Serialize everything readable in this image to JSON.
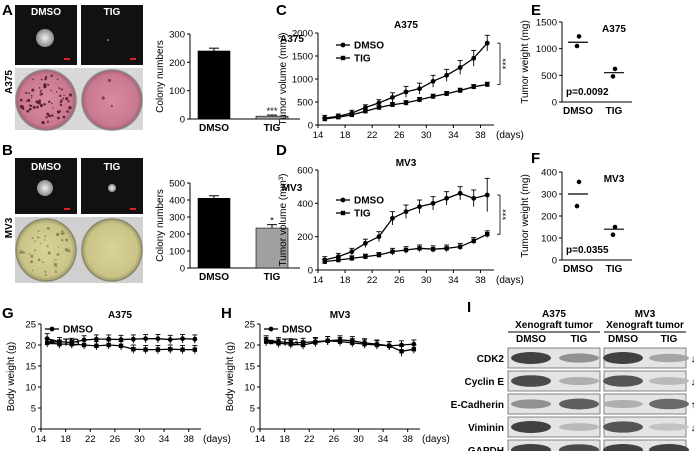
{
  "figure": {
    "A": {
      "letter": "A",
      "row_label": "A375",
      "img_labels": [
        "DMSO",
        "TIG"
      ],
      "chart_data": {
        "type": "bar",
        "title": "A375",
        "ylabel": "Colony numbers",
        "categories": [
          "DMSO",
          "TIG"
        ],
        "values": [
          240,
          10
        ],
        "errors": [
          10,
          4
        ],
        "ylim": [
          0,
          300
        ],
        "yticks": [
          "0",
          "100",
          "200",
          "300"
        ],
        "colors": [
          "#000000",
          "#a0a0a0"
        ],
        "significance": [
          "",
          "***"
        ]
      }
    },
    "B": {
      "letter": "B",
      "row_label": "MV3",
      "img_labels": [
        "DMSO",
        "TIG"
      ],
      "chart_data": {
        "type": "bar",
        "title": "MV3",
        "ylabel": "Colony numbers",
        "categories": [
          "DMSO",
          "TIG"
        ],
        "values": [
          410,
          235
        ],
        "errors": [
          15,
          20
        ],
        "ylim": [
          0,
          500
        ],
        "yticks": [
          "0",
          "100",
          "200",
          "300",
          "400",
          "500"
        ],
        "colors": [
          "#000000",
          "#a0a0a0"
        ],
        "significance": [
          "",
          "*"
        ]
      }
    },
    "C": {
      "letter": "C",
      "chart_data": {
        "type": "line",
        "title": "A375",
        "ylabel": "Tumor  volume (mm³)",
        "xunit": "(days)",
        "xticks": [
          "14",
          "18",
          "22",
          "26",
          "30",
          "34",
          "38"
        ],
        "yticks": [
          "0",
          "500",
          "1000",
          "1500",
          "2000"
        ],
        "xlim": [
          14,
          40
        ],
        "ylim": [
          0,
          2000
        ],
        "sig": "***",
        "x": [
          15,
          17,
          19,
          21,
          23,
          25,
          27,
          29,
          31,
          33,
          35,
          37,
          39
        ],
        "series": [
          {
            "name": "DMSO",
            "values": [
              150,
              190,
              260,
              380,
              480,
              600,
              720,
              790,
              950,
              1080,
              1250,
              1450,
              1780
            ],
            "errors": [
              60,
              50,
              60,
              60,
              70,
              100,
              120,
              120,
              130,
              130,
              150,
              170,
              170
            ]
          },
          {
            "name": "TIG",
            "values": [
              130,
              170,
              220,
              300,
              380,
              440,
              480,
              550,
              620,
              680,
              750,
              830,
              880
            ],
            "errors": [
              30,
              30,
              40,
              40,
              40,
              50,
              50,
              50,
              50,
              50,
              50,
              50,
              50
            ]
          }
        ]
      }
    },
    "D": {
      "letter": "D",
      "chart_data": {
        "type": "line",
        "title": "MV3",
        "ylabel": "Tumor  volume (mm³)",
        "xunit": "(days)",
        "xticks": [
          "14",
          "18",
          "22",
          "26",
          "30",
          "34",
          "38"
        ],
        "yticks": [
          "0",
          "200",
          "400",
          "600"
        ],
        "xlim": [
          14,
          40
        ],
        "ylim": [
          0,
          600
        ],
        "sig": "***",
        "x": [
          15,
          17,
          19,
          21,
          23,
          25,
          27,
          29,
          31,
          33,
          35,
          37,
          39
        ],
        "series": [
          {
            "name": "DMSO",
            "values": [
              60,
              80,
              110,
              160,
              200,
              310,
              350,
              380,
              400,
              430,
              460,
              430,
              450
            ],
            "errors": [
              20,
              20,
              20,
              25,
              30,
              40,
              40,
              40,
              40,
              40,
              40,
              50,
              100
            ]
          },
          {
            "name": "TIG",
            "values": [
              50,
              60,
              70,
              80,
              90,
              110,
              120,
              130,
              125,
              130,
              140,
              175,
              215
            ],
            "errors": [
              15,
              15,
              15,
              15,
              15,
              20,
              20,
              20,
              20,
              20,
              20,
              20,
              20
            ]
          }
        ]
      }
    },
    "E": {
      "letter": "E",
      "chart_data": {
        "type": "scatter",
        "title": "A375",
        "ylabel": "Tumor  weight (mg)",
        "categories": [
          "DMSO",
          "TIG"
        ],
        "points": [
          [
            1230,
            1050
          ],
          [
            620,
            480
          ]
        ],
        "means": [
          1120,
          550
        ],
        "ylim": [
          0,
          1500
        ],
        "yticks": [
          "0",
          "500",
          "1000",
          "1500"
        ],
        "pvalue": "p=0.0092"
      }
    },
    "F": {
      "letter": "F",
      "chart_data": {
        "type": "scatter",
        "title": "MV3",
        "ylabel": "Tumor  weight (mg)",
        "categories": [
          "DMSO",
          "TIG"
        ],
        "points": [
          [
            355,
            245
          ],
          [
            150,
            115
          ]
        ],
        "means": [
          300,
          140
        ],
        "ylim": [
          0,
          400
        ],
        "yticks": [
          "0",
          "100",
          "200",
          "300",
          "400"
        ],
        "pvalue": "p=0.0355"
      }
    },
    "G": {
      "letter": "G",
      "chart_data": {
        "type": "line",
        "title": "A375",
        "ylabel": "Body weight (g)",
        "xunit": "(days)",
        "xticks": [
          "14",
          "18",
          "22",
          "26",
          "30",
          "34",
          "38"
        ],
        "yticks": [
          "0",
          "5",
          "10",
          "15",
          "20",
          "25"
        ],
        "xlim": [
          14,
          40
        ],
        "ylim": [
          0,
          25
        ],
        "x": [
          15,
          17,
          19,
          21,
          23,
          25,
          27,
          29,
          31,
          33,
          35,
          37,
          39
        ],
        "series": [
          {
            "name": "DMSO",
            "values": [
              21.5,
              20.8,
              20.6,
              21.2,
              21.4,
              21.4,
              21.3,
              21.4,
              21.5,
              21.5,
              21.3,
              21.5,
              21.4
            ],
            "errors": [
              1.2,
              1.0,
              1.0,
              1.0,
              1.0,
              1.0,
              1.0,
              1.0,
              1.0,
              1.0,
              1.0,
              1.0,
              1.0
            ]
          },
          {
            "name": "TIG",
            "values": [
              20.5,
              20.2,
              20.2,
              20.0,
              19.8,
              20.0,
              19.8,
              19.0,
              18.9,
              18.9,
              19.0,
              18.9,
              18.9
            ],
            "errors": [
              1.0,
              1.0,
              1.0,
              1.0,
              1.0,
              1.0,
              1.0,
              1.0,
              1.0,
              1.0,
              1.0,
              1.0,
              1.0
            ]
          }
        ]
      }
    },
    "H": {
      "letter": "H",
      "chart_data": {
        "type": "line",
        "title": "MV3",
        "ylabel": "Body weight (g)",
        "xunit": "(days)",
        "xticks": [
          "14",
          "18",
          "22",
          "26",
          "30",
          "34",
          "38"
        ],
        "yticks": [
          "0",
          "5",
          "10",
          "15",
          "20",
          "25"
        ],
        "xlim": [
          14,
          40
        ],
        "ylim": [
          0,
          25
        ],
        "x": [
          15,
          17,
          19,
          21,
          23,
          25,
          27,
          29,
          31,
          33,
          35,
          37,
          39
        ],
        "series": [
          {
            "name": "DMSO",
            "values": [
              21.2,
              20.8,
              20.5,
              20.6,
              20.8,
              21.0,
              21.2,
              21.0,
              20.5,
              20.2,
              19.8,
              20.0,
              20.2
            ],
            "errors": [
              1.0,
              1.0,
              1.0,
              1.0,
              1.0,
              1.0,
              1.0,
              1.0,
              1.0,
              1.0,
              1.0,
              1.0,
              1.0
            ]
          },
          {
            "name": "TIG",
            "values": [
              20.8,
              20.4,
              20.2,
              20.0,
              20.6,
              21.0,
              20.8,
              20.5,
              20.2,
              20.0,
              19.8,
              18.5,
              19.0
            ],
            "errors": [
              1.0,
              1.0,
              1.0,
              1.0,
              1.0,
              1.0,
              1.0,
              1.0,
              1.0,
              1.0,
              1.0,
              1.2,
              1.0
            ]
          }
        ]
      }
    },
    "I": {
      "letter": "I",
      "groups": [
        {
          "title_line1": "A375",
          "title_line2": "Xenograft tumor",
          "lanes": [
            "DMSO",
            "TIG"
          ]
        },
        {
          "title_line1": "MV3",
          "title_line2": "Xenograft tumor",
          "lanes": [
            "DMSO",
            "TIG"
          ]
        }
      ],
      "proteins": [
        {
          "name": "CDK2",
          "arrow": "↓",
          "a375": [
            0.85,
            0.45
          ],
          "mv3": [
            0.85,
            0.35
          ]
        },
        {
          "name": "Cyclin E",
          "arrow": "↓",
          "a375": [
            0.8,
            0.3
          ],
          "mv3": [
            0.75,
            0.25
          ]
        },
        {
          "name": "E-Cadherin",
          "arrow": "↑",
          "a375": [
            0.45,
            0.7
          ],
          "mv3": [
            0.3,
            0.65
          ]
        },
        {
          "name": "Viminin",
          "arrow": "↓",
          "a375": [
            0.85,
            0.25
          ],
          "mv3": [
            0.75,
            0.2
          ]
        },
        {
          "name": "GAPDH",
          "arrow": "",
          "a375": [
            0.85,
            0.8
          ],
          "mv3": [
            0.85,
            0.85
          ]
        }
      ]
    }
  }
}
